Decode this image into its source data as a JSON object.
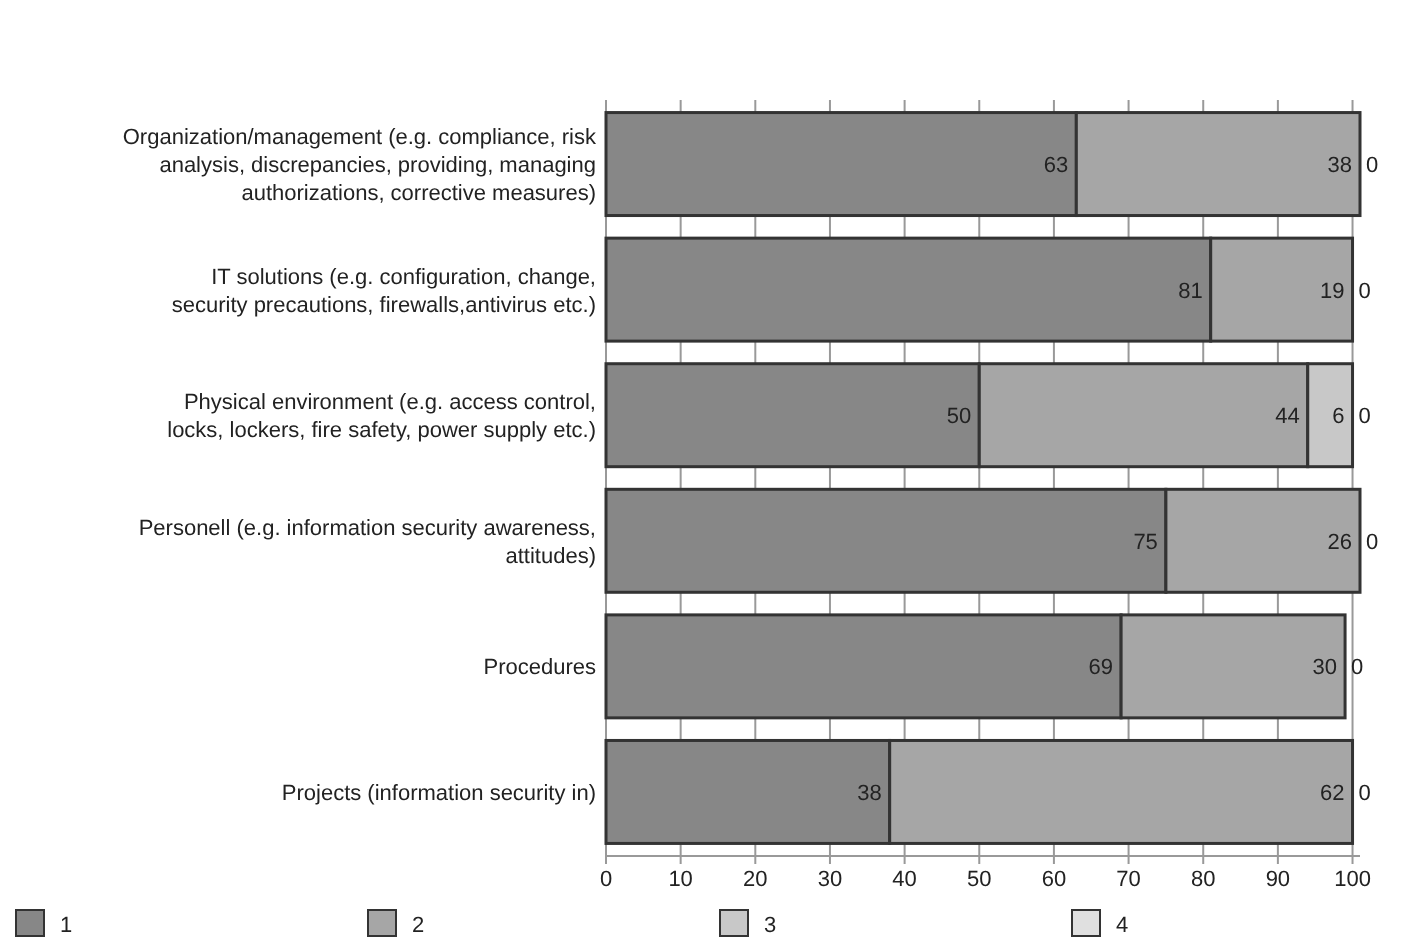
{
  "chart_data": {
    "type": "bar",
    "orientation": "horizontal",
    "stacked": true,
    "categories": [
      "Organization/management (e.g. compliance, risk analysis, discrepancies, providing, managing authorizations, corrective measures)",
      "IT solutions (e.g. configuration, change, security precautions, firewalls,antivirus etc.)",
      "Physical environment (e.g. access control, locks, lockers, fire safety, power supply etc.)",
      "Personell (e.g. information security awareness, attitudes)",
      "Procedures",
      "Projects (information security in)"
    ],
    "series": [
      {
        "name": "1",
        "color": "#878787",
        "values": [
          63,
          81,
          50,
          75,
          69,
          38
        ],
        "value_labels": [
          "63",
          "81",
          "50",
          "75",
          "69",
          "38"
        ]
      },
      {
        "name": "2",
        "color": "#a6a6a6",
        "values": [
          38,
          19,
          44,
          26,
          30,
          62
        ],
        "value_labels": [
          "38",
          "19",
          "44",
          "26",
          "30",
          "62"
        ]
      },
      {
        "name": "3",
        "color": "#c8c8c8",
        "values": [
          0,
          0,
          6,
          0,
          0,
          0
        ],
        "value_labels": [
          null,
          null,
          "6",
          null,
          null,
          null
        ]
      },
      {
        "name": "4",
        "color": "#e0e0e0",
        "values": [
          0,
          0,
          0,
          0,
          0,
          0
        ],
        "value_labels": [
          "0",
          "0",
          "0",
          "0",
          "0",
          "0"
        ]
      }
    ],
    "xlim": [
      0,
      101
    ],
    "xticks": [
      0,
      10,
      20,
      30,
      40,
      50,
      60,
      70,
      80,
      90,
      100
    ],
    "grid": "x",
    "legend": "bottom"
  }
}
